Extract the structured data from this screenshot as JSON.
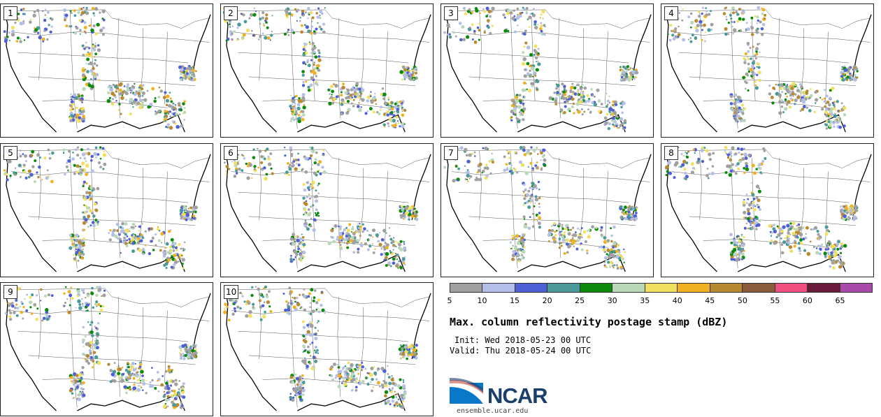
{
  "panels": [
    {
      "label": "1"
    },
    {
      "label": "2"
    },
    {
      "label": "3"
    },
    {
      "label": "4"
    },
    {
      "label": "5"
    },
    {
      "label": "6"
    },
    {
      "label": "7"
    },
    {
      "label": "8"
    },
    {
      "label": "9"
    },
    {
      "label": "10"
    }
  ],
  "colorbar": {
    "ticks": [
      "5",
      "10",
      "15",
      "20",
      "25",
      "30",
      "35",
      "40",
      "45",
      "50",
      "55",
      "60",
      "65"
    ],
    "colors": [
      "#a0a0a0",
      "#b4bfe8",
      "#4f5fd6",
      "#4a9a9a",
      "#0b8a0b",
      "#b8d8b8",
      "#f0e060",
      "#f0b020",
      "#b88a30",
      "#8a5a3a",
      "#f05080",
      "#6a1a3a",
      "#aa4aa8"
    ]
  },
  "title": "Max. column reflectivity postage stamp (dBZ)",
  "init": "Init: Wed 2018-05-23 00 UTC",
  "valid": "Valid: Thu 2018-05-24 00 UTC",
  "logo": {
    "text": "NCAR",
    "website": "ensemble.ucar.edu"
  }
}
